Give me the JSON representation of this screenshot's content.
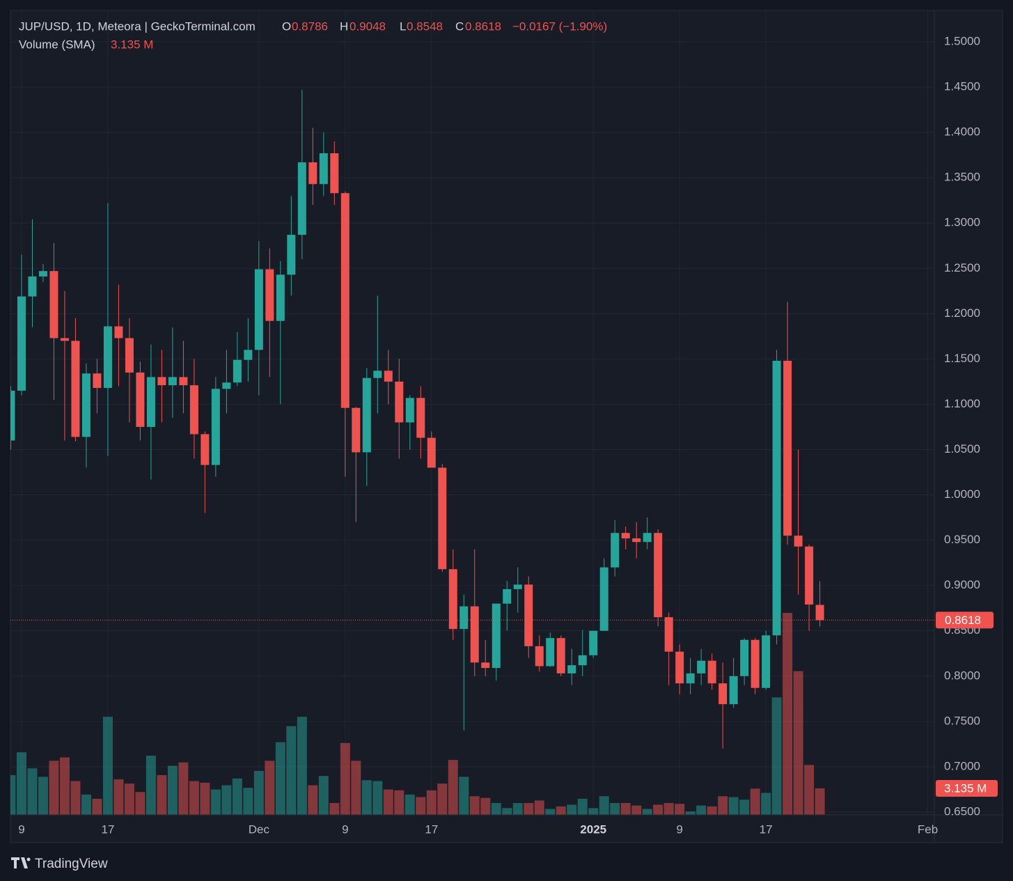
{
  "chart_data": {
    "type": "candlestick",
    "title": "JUP/USD, 1D, Meteora | GeckoTerminal.com",
    "header": {
      "o": "O",
      "open": "0.8786",
      "h": "H",
      "high": "0.9048",
      "l": "L",
      "low": "0.8548",
      "c": "C",
      "close": "0.8618",
      "change": "−0.0167 (−1.90%)"
    },
    "volume_legend": {
      "name": "Volume (SMA)",
      "value_label": "3.135 M"
    },
    "brand": "TradingView",
    "up_color": "#26a69a",
    "down_color": "#ef5350",
    "open": [
      1.06,
      1.115,
      1.219,
      1.241,
      1.247,
      1.173,
      1.17,
      1.064,
      1.134,
      1.118,
      1.186,
      1.173,
      1.135,
      1.075,
      1.13,
      1.121,
      1.13,
      1.121,
      1.067,
      1.033,
      1.117,
      1.124,
      1.149,
      1.16,
      1.249,
      1.192,
      1.243,
      1.287,
      1.367,
      1.343,
      1.377,
      1.333,
      1.096,
      1.047,
      1.129,
      1.137,
      1.125,
      1.08,
      1.107,
      1.063,
      1.03,
      0.918,
      0.852,
      0.877,
      0.815,
      0.809,
      0.88,
      0.896,
      0.901,
      0.833,
      0.811,
      0.842,
      0.803,
      0.812,
      0.823,
      0.85,
      0.92,
      0.958,
      0.952,
      0.948,
      0.958,
      0.865,
      0.827,
      0.792,
      0.803,
      0.817,
      0.792,
      0.769,
      0.8,
      0.84,
      0.787,
      0.845,
      1.148,
      0.955,
      0.943,
      0.8786
    ],
    "high": [
      1.12,
      1.265,
      1.304,
      1.255,
      1.278,
      1.225,
      1.195,
      1.145,
      1.15,
      1.322,
      1.232,
      1.195,
      1.147,
      1.166,
      1.16,
      1.185,
      1.17,
      1.15,
      1.07,
      1.13,
      1.16,
      1.18,
      1.195,
      1.28,
      1.272,
      1.258,
      1.33,
      1.447,
      1.405,
      1.4,
      1.39,
      1.335,
      1.097,
      1.14,
      1.22,
      1.16,
      1.15,
      1.11,
      1.12,
      1.07,
      1.034,
      0.94,
      0.89,
      0.94,
      0.84,
      0.88,
      0.905,
      0.92,
      0.91,
      0.845,
      0.848,
      0.845,
      0.83,
      0.851,
      0.85,
      0.93,
      0.972,
      0.965,
      0.97,
      0.975,
      0.962,
      0.87,
      0.835,
      0.82,
      0.83,
      0.825,
      0.815,
      0.82,
      0.842,
      0.842,
      0.85,
      1.16,
      1.213,
      1.05,
      0.945,
      0.9048
    ],
    "low": [
      1.05,
      1.11,
      1.185,
      1.235,
      1.105,
      1.06,
      1.059,
      1.03,
      1.09,
      1.043,
      1.12,
      1.08,
      1.06,
      1.017,
      1.08,
      1.085,
      1.09,
      1.04,
      0.98,
      1.02,
      1.09,
      1.12,
      1.125,
      1.11,
      1.13,
      1.1,
      1.22,
      1.26,
      1.32,
      1.33,
      1.32,
      1.02,
      0.97,
      1.01,
      1.09,
      1.1,
      1.04,
      1.05,
      1.04,
      1.03,
      0.915,
      0.84,
      0.74,
      0.8,
      0.8,
      0.795,
      0.85,
      0.87,
      0.82,
      0.805,
      0.81,
      0.8,
      0.79,
      0.8,
      0.82,
      0.85,
      0.91,
      0.94,
      0.93,
      0.94,
      0.855,
      0.79,
      0.78,
      0.78,
      0.79,
      0.785,
      0.72,
      0.765,
      0.79,
      0.78,
      0.785,
      0.835,
      0.945,
      0.89,
      0.85,
      0.8548
    ],
    "close": [
      1.115,
      1.219,
      1.241,
      1.247,
      1.173,
      1.17,
      1.064,
      1.134,
      1.118,
      1.186,
      1.173,
      1.135,
      1.075,
      1.13,
      1.121,
      1.13,
      1.121,
      1.067,
      1.033,
      1.117,
      1.124,
      1.149,
      1.16,
      1.249,
      1.192,
      1.243,
      1.287,
      1.367,
      1.343,
      1.377,
      1.333,
      1.096,
      1.047,
      1.129,
      1.137,
      1.125,
      1.08,
      1.107,
      1.063,
      1.03,
      0.918,
      0.852,
      0.877,
      0.815,
      0.809,
      0.88,
      0.896,
      0.901,
      0.833,
      0.811,
      0.842,
      0.803,
      0.812,
      0.823,
      0.85,
      0.92,
      0.958,
      0.952,
      0.948,
      0.958,
      0.865,
      0.827,
      0.792,
      0.803,
      0.817,
      0.792,
      0.769,
      0.8,
      0.84,
      0.787,
      0.845,
      1.148,
      0.955,
      0.943,
      0.879,
      0.8618
    ],
    "volume": [
      4.7,
      7.4,
      5.5,
      4.5,
      6.4,
      6.8,
      4.0,
      2.4,
      1.9,
      11.6,
      4.2,
      3.7,
      2.7,
      7.0,
      4.7,
      5.8,
      6.2,
      4.0,
      3.8,
      3.0,
      3.5,
      4.3,
      3.2,
      5.2,
      6.4,
      8.6,
      10.5,
      11.6,
      3.5,
      4.6,
      1.4,
      8.5,
      6.4,
      4.1,
      4.0,
      3.0,
      2.9,
      2.4,
      2.1,
      2.9,
      3.7,
      6.5,
      4.5,
      2.2,
      2.0,
      1.4,
      0.8,
      1.4,
      1.4,
      1.7,
      0.7,
      1.0,
      1.2,
      1.9,
      0.8,
      2.2,
      1.4,
      1.4,
      1.1,
      0.7,
      1.2,
      1.4,
      1.3,
      0.4,
      1.1,
      1.0,
      2.2,
      2.1,
      1.8,
      3.1,
      2.6,
      13.9,
      23.9,
      17.0,
      5.9,
      3.135
    ],
    "xlim": [
      -0.03,
      85.61
    ],
    "xticks": [
      {
        "value": 1,
        "label": "9"
      },
      {
        "value": 9,
        "label": "17"
      },
      {
        "value": 23,
        "label": "Dec"
      },
      {
        "value": 31,
        "label": "9"
      },
      {
        "value": 39,
        "label": "17"
      },
      {
        "value": 54,
        "label": "2025"
      },
      {
        "value": 62,
        "label": "9"
      },
      {
        "value": 70,
        "label": "17"
      },
      {
        "value": 85,
        "label": "Feb"
      }
    ],
    "ylim": [
      0.6469,
      1.5346
    ],
    "yticks": [
      {
        "value": 0.65,
        "label": "0.6500"
      },
      {
        "value": 0.7,
        "label": "0.7000"
      },
      {
        "value": 0.75,
        "label": "0.7500"
      },
      {
        "value": 0.8,
        "label": "0.8000"
      },
      {
        "value": 0.85,
        "label": "0.8500"
      },
      {
        "value": 0.9,
        "label": "0.9000"
      },
      {
        "value": 0.95,
        "label": "0.9500"
      },
      {
        "value": 1.0,
        "label": "1.0000"
      },
      {
        "value": 1.05,
        "label": "1.0500"
      },
      {
        "value": 1.1,
        "label": "1.1000"
      },
      {
        "value": 1.15,
        "label": "1.1500"
      },
      {
        "value": 1.2,
        "label": "1.2000"
      },
      {
        "value": 1.25,
        "label": "1.2500"
      },
      {
        "value": 1.3,
        "label": "1.3000"
      },
      {
        "value": 1.35,
        "label": "1.3500"
      },
      {
        "value": 1.4,
        "label": "1.4000"
      },
      {
        "value": 1.45,
        "label": "1.4500"
      },
      {
        "value": 1.5,
        "label": "1.5000"
      }
    ],
    "grid": true
  }
}
